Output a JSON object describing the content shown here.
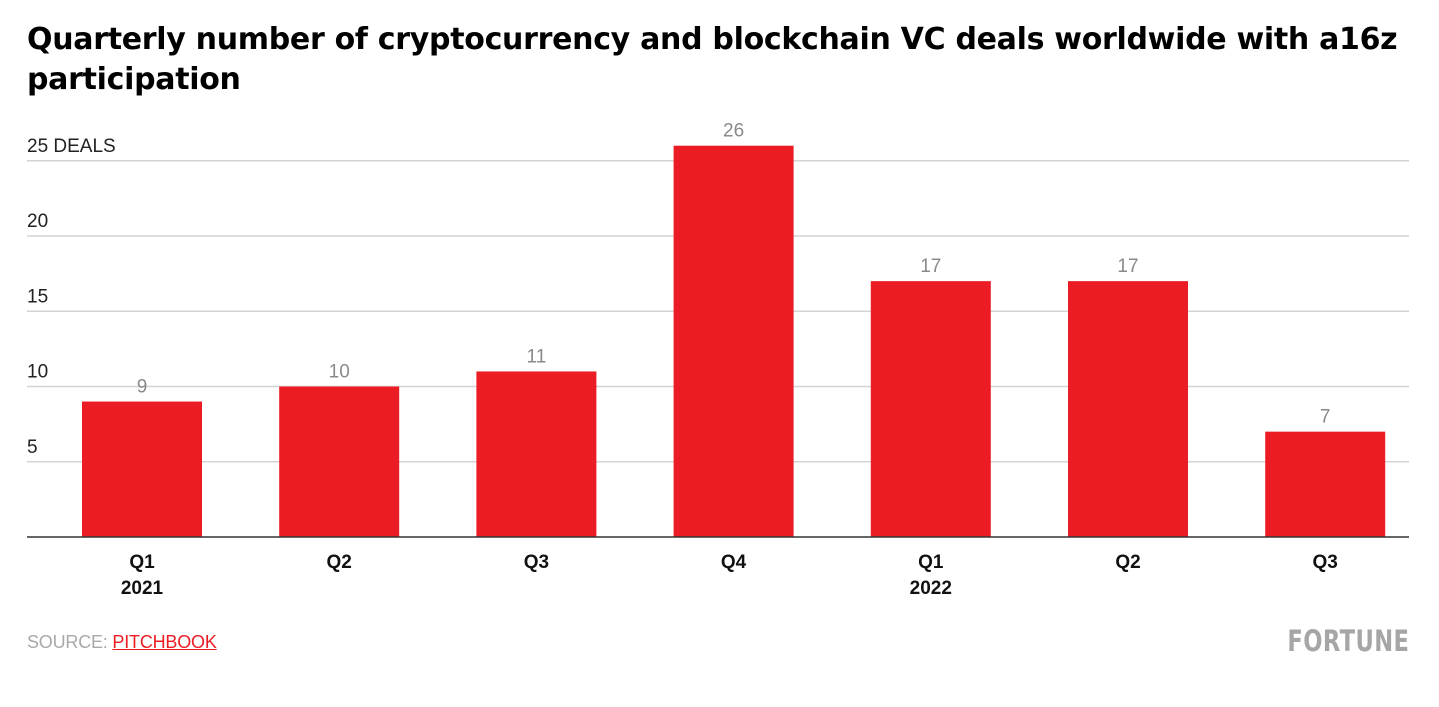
{
  "chart_data": {
    "type": "bar",
    "title": "Quarterly number of cryptocurrency and blockchain VC deals worldwide with a16z participation",
    "xlabel": "",
    "ylabel": "Deals",
    "ylim": [
      0,
      25
    ],
    "grid": true,
    "y_ticks": [
      5,
      10,
      15,
      20,
      25
    ],
    "y_tick_labels": [
      "5",
      "10",
      "15",
      "20",
      "25 DEALS"
    ],
    "categories": [
      "Q1 2021",
      "Q2 2021",
      "Q3 2021",
      "Q4 2021",
      "Q1 2022",
      "Q2 2022",
      "Q3 2022"
    ],
    "category_labels": [
      {
        "quarter": "Q1",
        "year": "2021"
      },
      {
        "quarter": "Q2",
        "year": ""
      },
      {
        "quarter": "Q3",
        "year": ""
      },
      {
        "quarter": "Q4",
        "year": ""
      },
      {
        "quarter": "Q1",
        "year": "2022"
      },
      {
        "quarter": "Q2",
        "year": ""
      },
      {
        "quarter": "Q3",
        "year": ""
      }
    ],
    "values": [
      9,
      10,
      11,
      26,
      17,
      17,
      7
    ],
    "data_labels": [
      "9",
      "10",
      "11",
      "26",
      "17",
      "17",
      "7"
    ],
    "colors": {
      "bar": "#ec1c24",
      "grid": "#d4d4d4",
      "axis": "#333333",
      "value_label": "#8a8a8a"
    }
  },
  "header": {
    "title": "Quarterly number of cryptocurrency and blockchain VC deals worldwide with a16z participation"
  },
  "footer": {
    "source_prefix": "SOURCE: ",
    "source_link": "PITCHBOOK",
    "brand": "FORTUNE"
  }
}
